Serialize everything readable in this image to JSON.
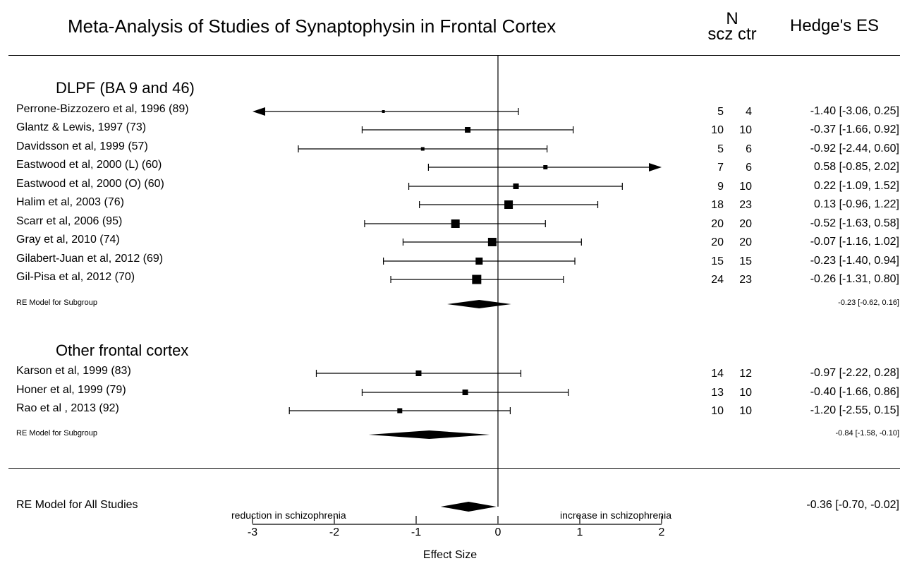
{
  "chart_data": {
    "type": "forest",
    "title": "Meta-Analysis of Studies of Synaptophysin in Frontal Cortex",
    "n_header": {
      "label": "N",
      "sublabel": "scz ctr"
    },
    "es_header": "Hedge's ES",
    "xlabel": "Effect Size",
    "xlim": [
      -3,
      2
    ],
    "xticks": [
      "-3",
      "-2",
      "-1",
      "0",
      "1",
      "2"
    ],
    "direction_left": "reduction in schizophrenia",
    "direction_right": "increase in schizophrenia",
    "subgroups": [
      {
        "name": "DLPF (BA 9 and 46)",
        "studies": [
          {
            "label": "Perrone-Bizzozero et al, 1996 (89)",
            "scz": "5",
            "ctr": "4",
            "es": -1.4,
            "lo": -3.06,
            "hi": 0.25,
            "es_text": "-1.40 [-3.06,  0.25]"
          },
          {
            "label": "Glantz & Lewis, 1997 (73)",
            "scz": "10",
            "ctr": "10",
            "es": -0.37,
            "lo": -1.66,
            "hi": 0.92,
            "es_text": "-0.37 [-1.66,  0.92]"
          },
          {
            "label": "Davidsson et al, 1999 (57)",
            "scz": "5",
            "ctr": "6",
            "es": -0.92,
            "lo": -2.44,
            "hi": 0.6,
            "es_text": "-0.92 [-2.44,  0.60]"
          },
          {
            "label": "Eastwood et al, 2000 (L) (60)",
            "scz": "7",
            "ctr": "6",
            "es": 0.58,
            "lo": -0.85,
            "hi": 2.02,
            "es_text": "0.58 [-0.85,  2.02]"
          },
          {
            "label": "Eastwood et al, 2000 (O) (60)",
            "scz": "9",
            "ctr": "10",
            "es": 0.22,
            "lo": -1.09,
            "hi": 1.52,
            "es_text": "0.22 [-1.09,  1.52]"
          },
          {
            "label": "Halim et al, 2003 (76)",
            "scz": "18",
            "ctr": "23",
            "es": 0.13,
            "lo": -0.96,
            "hi": 1.22,
            "es_text": "0.13 [-0.96,  1.22]"
          },
          {
            "label": "Scarr et al, 2006 (95)",
            "scz": "20",
            "ctr": "20",
            "es": -0.52,
            "lo": -1.63,
            "hi": 0.58,
            "es_text": "-0.52 [-1.63,  0.58]"
          },
          {
            "label": "Gray et al, 2010 (74)",
            "scz": "20",
            "ctr": "20",
            "es": -0.07,
            "lo": -1.16,
            "hi": 1.02,
            "es_text": "-0.07 [-1.16,  1.02]"
          },
          {
            "label": "Gilabert-Juan et al, 2012 (69)",
            "scz": "15",
            "ctr": "15",
            "es": -0.23,
            "lo": -1.4,
            "hi": 0.94,
            "es_text": "-0.23 [-1.40,  0.94]"
          },
          {
            "label": "Gil-Pisa et al, 2012 (70)",
            "scz": "24",
            "ctr": "23",
            "es": -0.26,
            "lo": -1.31,
            "hi": 0.8,
            "es_text": "-0.26 [-1.31,  0.80]"
          }
        ],
        "summary": {
          "label": "RE Model for Subgroup",
          "es": -0.23,
          "lo": -0.62,
          "hi": 0.16,
          "es_text": "-0.23 [-0.62, 0.16]"
        }
      },
      {
        "name": "Other frontal cortex",
        "studies": [
          {
            "label": "Karson et al, 1999 (83)",
            "scz": "14",
            "ctr": "12",
            "es": -0.97,
            "lo": -2.22,
            "hi": 0.28,
            "es_text": "-0.97 [-2.22,  0.28]"
          },
          {
            "label": "Honer et al, 1999 (79)",
            "scz": "13",
            "ctr": "10",
            "es": -0.4,
            "lo": -1.66,
            "hi": 0.86,
            "es_text": "-0.40 [-1.66,  0.86]"
          },
          {
            "label": "Rao et al , 2013 (92)",
            "scz": "10",
            "ctr": "10",
            "es": -1.2,
            "lo": -2.55,
            "hi": 0.15,
            "es_text": "-1.20 [-2.55,  0.15]"
          }
        ],
        "summary": {
          "label": "RE Model for Subgroup",
          "es": -0.84,
          "lo": -1.58,
          "hi": -0.1,
          "es_text": "-0.84 [-1.58, -0.10]"
        }
      }
    ],
    "overall": {
      "label": "RE Model for All Studies",
      "es": -0.36,
      "lo": -0.7,
      "hi": -0.02,
      "es_text": "-0.36 [-0.70, -0.02]"
    }
  }
}
